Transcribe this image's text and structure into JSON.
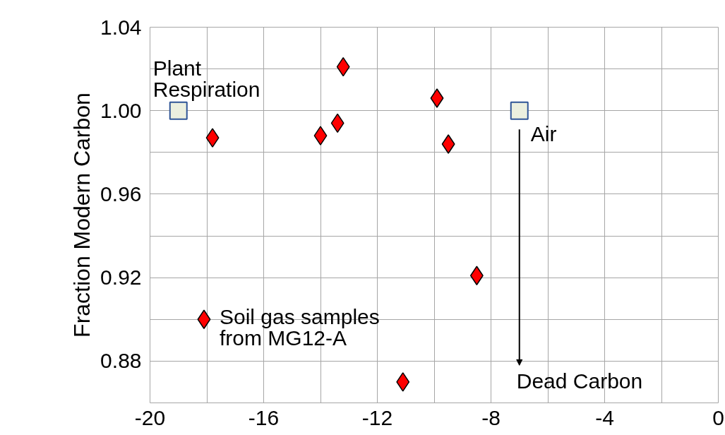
{
  "chart_data": {
    "type": "scatter",
    "ylabel": "Fraction Modern Carbon",
    "series": [
      {
        "color": "#ff0000",
        "marker": "diamond",
        "x": [
          -18.1,
          -17.8,
          -14.0,
          -13.4,
          -13.2,
          -9.9,
          -9.5,
          -8.5,
          -11.1
        ],
        "values": [
          0.9,
          0.987,
          0.988,
          0.994,
          1.021,
          1.006,
          0.984,
          0.921,
          0.87
        ]
      },
      {
        "color": "#ebefdf",
        "marker": "square",
        "x": [
          -19.0,
          -7.0
        ],
        "values": [
          1.0,
          1.0
        ]
      }
    ],
    "annotations": [
      {
        "text": "Plant\nRespiration",
        "x": -19.0,
        "y": 1.0
      },
      {
        "text": "Air",
        "x": -7.0,
        "y": 1.0
      },
      {
        "text": "Soil gas samples\nfrom MG12-A",
        "x": -18.1,
        "y": 0.9
      },
      "Dead Carbon"
    ],
    "xlim": [
      -20,
      0
    ],
    "xticks": [
      -20,
      {
        "value": -18,
        "label": null
      },
      -16,
      {
        "value": -14,
        "label": null
      },
      -12,
      {
        "value": -10,
        "label": null
      },
      -8,
      {
        "value": -6,
        "label": null
      },
      -4,
      {
        "value": -2,
        "label": null
      },
      0
    ],
    "ylim": [
      0.86,
      1.04
    ],
    "yticks": [
      {
        "value": 0.86,
        "label": null
      },
      0.88,
      {
        "value": 0.9,
        "label": null
      },
      0.92,
      {
        "value": 0.94,
        "label": null
      },
      0.96,
      {
        "value": 0.98,
        "label": null
      },
      "1.00",
      {
        "value": 1.02,
        "label": null
      },
      1.04
    ],
    "grid": true
  }
}
